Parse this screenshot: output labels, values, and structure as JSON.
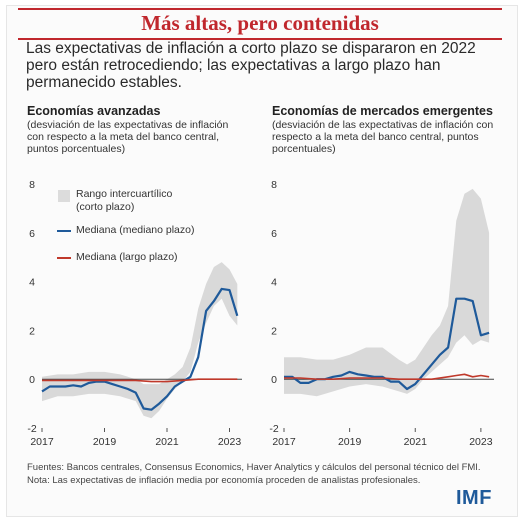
{
  "header": {
    "title": "Más altas, pero contenidas",
    "subtitle": "Las expectativas de inflación a corto plazo se dispararon en 2022 pero están retrocediendo; las expectativas a largo plazo han permanecido estables."
  },
  "legend": {
    "band": "Rango intercuartílico (corto plazo)",
    "medium": "Mediana (mediano plazo)",
    "long": "Mediana (largo plazo)"
  },
  "colors": {
    "accent": "#c0272d",
    "medium_line": "#1f5a9a",
    "long_line": "#c0392b",
    "band": "#d9d9d9",
    "logo": "#1f5a9a"
  },
  "chart_data": [
    {
      "type": "line",
      "title": "Economías avanzadas",
      "subtitle": "(desviación de las expectativas de inflación con respecto a la meta del banco central, puntos porcentuales)",
      "x_ticks": [
        "2017",
        "2019",
        "2021",
        "2023"
      ],
      "y_ticks": [
        "-2",
        "0",
        "2",
        "4",
        "6",
        "8"
      ],
      "xlim": [
        2017.0,
        2023.4
      ],
      "ylim": [
        -2,
        8
      ],
      "band_x": [
        2017.0,
        2017.5,
        2018.0,
        2018.5,
        2019.0,
        2019.5,
        2020.0,
        2020.25,
        2020.5,
        2020.75,
        2021.0,
        2021.25,
        2021.5,
        2021.75,
        2022.0,
        2022.25,
        2022.5,
        2022.75,
        2023.0,
        2023.25
      ],
      "band_low": [
        -0.9,
        -0.7,
        -0.7,
        -0.6,
        -0.6,
        -0.7,
        -0.9,
        -1.5,
        -1.6,
        -1.3,
        -0.8,
        -0.4,
        -0.1,
        0.3,
        1.5,
        2.3,
        3.0,
        3.3,
        2.6,
        2.2
      ],
      "band_high": [
        0.1,
        0.2,
        0.2,
        0.3,
        0.3,
        0.2,
        0.0,
        -0.2,
        -0.2,
        -0.2,
        0.0,
        0.2,
        0.5,
        1.3,
        2.9,
        3.9,
        4.6,
        4.8,
        4.5,
        3.9
      ],
      "series": [
        {
          "name": "Mediana (mediano plazo)",
          "x": [
            2017.0,
            2017.25,
            2017.5,
            2017.75,
            2018.0,
            2018.25,
            2018.5,
            2018.75,
            2019.0,
            2019.25,
            2019.5,
            2019.75,
            2020.0,
            2020.25,
            2020.5,
            2020.75,
            2021.0,
            2021.25,
            2021.5,
            2021.75,
            2022.0,
            2022.25,
            2022.5,
            2022.75,
            2023.0,
            2023.25
          ],
          "y": [
            -0.5,
            -0.3,
            -0.3,
            -0.3,
            -0.25,
            -0.3,
            -0.15,
            -0.1,
            -0.1,
            -0.2,
            -0.3,
            -0.4,
            -0.55,
            -1.2,
            -1.25,
            -1.0,
            -0.7,
            -0.3,
            -0.1,
            0.1,
            0.9,
            2.8,
            3.2,
            3.7,
            3.65,
            2.6
          ]
        },
        {
          "name": "Mediana (largo plazo)",
          "x": [
            2017.0,
            2017.5,
            2018.0,
            2018.5,
            2019.0,
            2019.5,
            2020.0,
            2020.5,
            2021.0,
            2021.5,
            2022.0,
            2022.5,
            2023.0,
            2023.25
          ],
          "y": [
            -0.05,
            -0.05,
            -0.05,
            -0.05,
            -0.05,
            -0.05,
            -0.05,
            -0.1,
            -0.1,
            -0.05,
            0.0,
            0.0,
            0.0,
            0.0
          ]
        }
      ]
    },
    {
      "type": "line",
      "title": "Economías de mercados emergentes",
      "subtitle": "(desviación de las expectativas de inflación con respecto a la meta del banco central, puntos porcentuales)",
      "x_ticks": [
        "2017",
        "2019",
        "2021",
        "2023"
      ],
      "y_ticks": [
        "-2",
        "0",
        "2",
        "4",
        "6",
        "8"
      ],
      "xlim": [
        2017.0,
        2023.4
      ],
      "ylim": [
        -2,
        8
      ],
      "band_x": [
        2017.0,
        2017.5,
        2018.0,
        2018.5,
        2019.0,
        2019.5,
        2020.0,
        2020.5,
        2020.75,
        2021.0,
        2021.25,
        2021.5,
        2021.75,
        2022.0,
        2022.25,
        2022.5,
        2022.75,
        2023.0,
        2023.25
      ],
      "band_low": [
        -0.6,
        -0.6,
        -0.7,
        -0.5,
        -0.3,
        -0.2,
        -0.3,
        -0.5,
        -0.6,
        -0.4,
        0.0,
        0.3,
        0.6,
        0.9,
        1.5,
        1.8,
        1.4,
        1.6,
        1.5
      ],
      "band_high": [
        0.9,
        0.9,
        0.8,
        0.8,
        1.0,
        1.3,
        1.3,
        0.8,
        0.6,
        0.8,
        1.3,
        1.8,
        2.2,
        3.0,
        6.5,
        7.6,
        7.8,
        7.4,
        6.0
      ],
      "series": [
        {
          "name": "Mediana (mediano plazo)",
          "x": [
            2017.0,
            2017.25,
            2017.5,
            2017.75,
            2018.0,
            2018.25,
            2018.5,
            2018.75,
            2019.0,
            2019.25,
            2019.5,
            2019.75,
            2020.0,
            2020.25,
            2020.5,
            2020.75,
            2021.0,
            2021.25,
            2021.5,
            2021.75,
            2022.0,
            2022.25,
            2022.5,
            2022.75,
            2023.0,
            2023.25
          ],
          "y": [
            0.1,
            0.1,
            -0.15,
            -0.15,
            0.0,
            0.0,
            0.1,
            0.15,
            0.3,
            0.2,
            0.15,
            0.1,
            0.1,
            -0.1,
            -0.1,
            -0.4,
            -0.2,
            0.2,
            0.6,
            1.0,
            1.3,
            3.3,
            3.3,
            3.2,
            1.8,
            1.9
          ]
        },
        {
          "name": "Mediana (largo plazo)",
          "x": [
            2017.0,
            2017.5,
            2018.0,
            2018.5,
            2019.0,
            2019.5,
            2020.0,
            2020.5,
            2021.0,
            2021.5,
            2022.0,
            2022.25,
            2022.5,
            2022.75,
            2023.0,
            2023.25
          ],
          "y": [
            0.05,
            0.05,
            0.0,
            0.0,
            0.05,
            0.05,
            0.05,
            0.0,
            0.0,
            0.0,
            0.1,
            0.15,
            0.2,
            0.1,
            0.15,
            0.1
          ]
        }
      ]
    }
  ],
  "footer": {
    "sources": "Fuentes: Bancos centrales, Consensus Economics, Haver Analytics y cálculos del personal técnico del FMI.",
    "note": "Nota: Las expectativas de inflación media por economía proceden de analistas profesionales."
  },
  "logo": "IMF"
}
